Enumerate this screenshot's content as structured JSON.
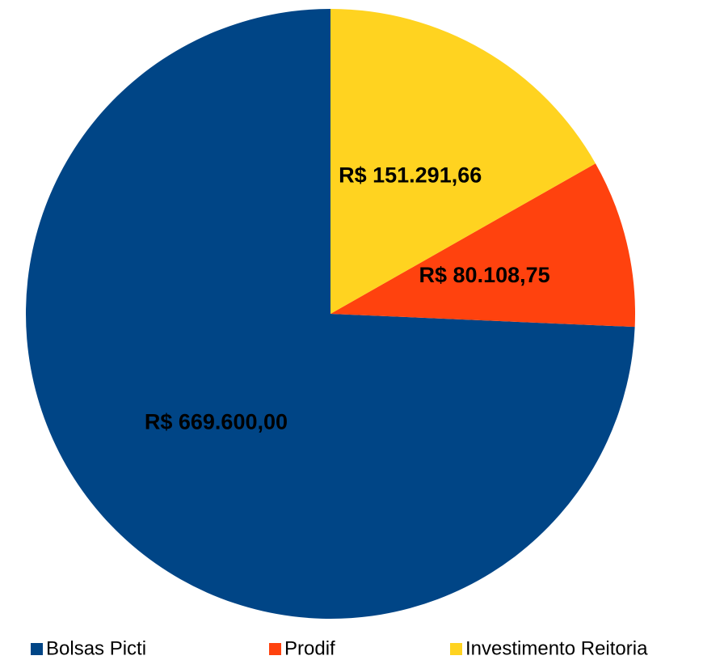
{
  "chart_data": {
    "type": "pie",
    "categories": [
      "Bolsas Picti",
      "Prodif",
      "Investimento Reitoria"
    ],
    "values": [
      669600.0,
      80108.75,
      151291.66
    ],
    "value_labels": [
      "R$ 669.600,00",
      "R$ 80.108,75",
      "R$ 151.291,66"
    ],
    "colors": [
      "#004586",
      "#ff420e",
      "#ffd320"
    ],
    "legend": "bottom"
  }
}
